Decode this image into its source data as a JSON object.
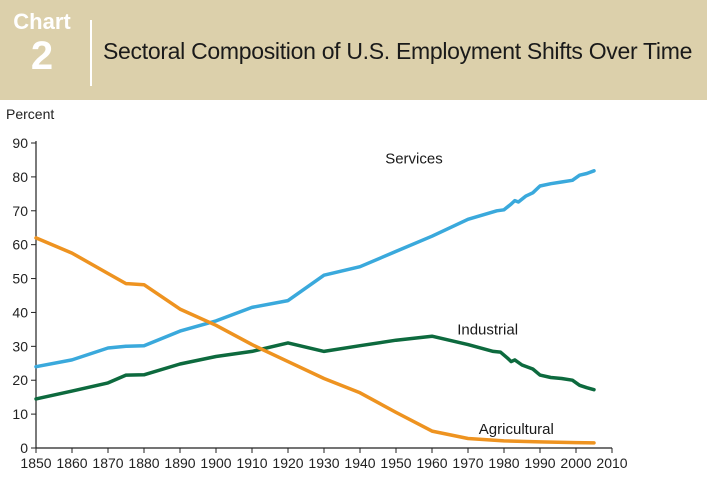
{
  "header": {
    "chart_word": "Chart",
    "chart_number": "2",
    "title": "Sectoral Composition of U.S. Employment Shifts Over Time"
  },
  "colors": {
    "banner": "#dcd0ab",
    "services": "#3aa9dc",
    "industrial": "#0d6a3e",
    "agricultural": "#ee9320"
  },
  "chart_data": {
    "type": "line",
    "title": "Sectoral Composition of U.S. Employment Shifts Over Time",
    "ylabel": "Percent",
    "xlabel": "",
    "xlim": [
      1850,
      2010
    ],
    "ylim": [
      0,
      90
    ],
    "xticks": [
      1850,
      1860,
      1870,
      1880,
      1890,
      1900,
      1910,
      1920,
      1930,
      1940,
      1950,
      1960,
      1970,
      1980,
      1990,
      2000,
      2010
    ],
    "yticks": [
      0,
      10,
      20,
      30,
      40,
      50,
      60,
      70,
      80,
      90
    ],
    "grid": false,
    "legend": "inline labels",
    "series": [
      {
        "name": "Services",
        "color": "#3aa9dc",
        "label_at": [
          1947,
          84
        ],
        "points": [
          [
            1850,
            24
          ],
          [
            1860,
            26
          ],
          [
            1870,
            29.5
          ],
          [
            1875,
            30
          ],
          [
            1880,
            30.2
          ],
          [
            1890,
            34.5
          ],
          [
            1900,
            37.5
          ],
          [
            1910,
            41.5
          ],
          [
            1920,
            43.5
          ],
          [
            1930,
            51
          ],
          [
            1940,
            53.5
          ],
          [
            1950,
            58
          ],
          [
            1960,
            62.5
          ],
          [
            1970,
            67.5
          ],
          [
            1978,
            70
          ],
          [
            1980,
            70.3
          ],
          [
            1982,
            72
          ],
          [
            1983,
            73
          ],
          [
            1984,
            72.6
          ],
          [
            1986,
            74.3
          ],
          [
            1988,
            75.3
          ],
          [
            1990,
            77.3
          ],
          [
            1993,
            78
          ],
          [
            1996,
            78.5
          ],
          [
            1999,
            79
          ],
          [
            2001,
            80.5
          ],
          [
            2003,
            81
          ],
          [
            2005,
            81.8
          ]
        ]
      },
      {
        "name": "Industrial",
        "color": "#0d6a3e",
        "label_at": [
          1967,
          33.5
        ],
        "points": [
          [
            1850,
            14.5
          ],
          [
            1860,
            16.8
          ],
          [
            1870,
            19.2
          ],
          [
            1875,
            21.5
          ],
          [
            1880,
            21.6
          ],
          [
            1890,
            24.8
          ],
          [
            1900,
            27
          ],
          [
            1910,
            28.5
          ],
          [
            1920,
            31
          ],
          [
            1930,
            28.5
          ],
          [
            1940,
            30.2
          ],
          [
            1950,
            31.8
          ],
          [
            1960,
            33
          ],
          [
            1970,
            30.5
          ],
          [
            1977,
            28.5
          ],
          [
            1979,
            28.3
          ],
          [
            1981,
            26.5
          ],
          [
            1982,
            25.5
          ],
          [
            1983,
            26
          ],
          [
            1985,
            24.5
          ],
          [
            1988,
            23.3
          ],
          [
            1990,
            21.5
          ],
          [
            1993,
            20.8
          ],
          [
            1996,
            20.5
          ],
          [
            1999,
            20
          ],
          [
            2001,
            18.5
          ],
          [
            2003,
            17.8
          ],
          [
            2005,
            17.2
          ]
        ]
      },
      {
        "name": "Agricultural",
        "color": "#ee9320",
        "label_at": [
          1973,
          4.2
        ],
        "points": [
          [
            1850,
            62
          ],
          [
            1860,
            57.5
          ],
          [
            1870,
            51.5
          ],
          [
            1875,
            48.5
          ],
          [
            1880,
            48.2
          ],
          [
            1890,
            41
          ],
          [
            1900,
            36.2
          ],
          [
            1910,
            30.5
          ],
          [
            1920,
            25.5
          ],
          [
            1930,
            20.5
          ],
          [
            1940,
            16.3
          ],
          [
            1950,
            10.5
          ],
          [
            1960,
            5
          ],
          [
            1970,
            2.8
          ],
          [
            1980,
            2.1
          ],
          [
            1990,
            1.8
          ],
          [
            2000,
            1.6
          ],
          [
            2005,
            1.5
          ]
        ]
      }
    ]
  }
}
